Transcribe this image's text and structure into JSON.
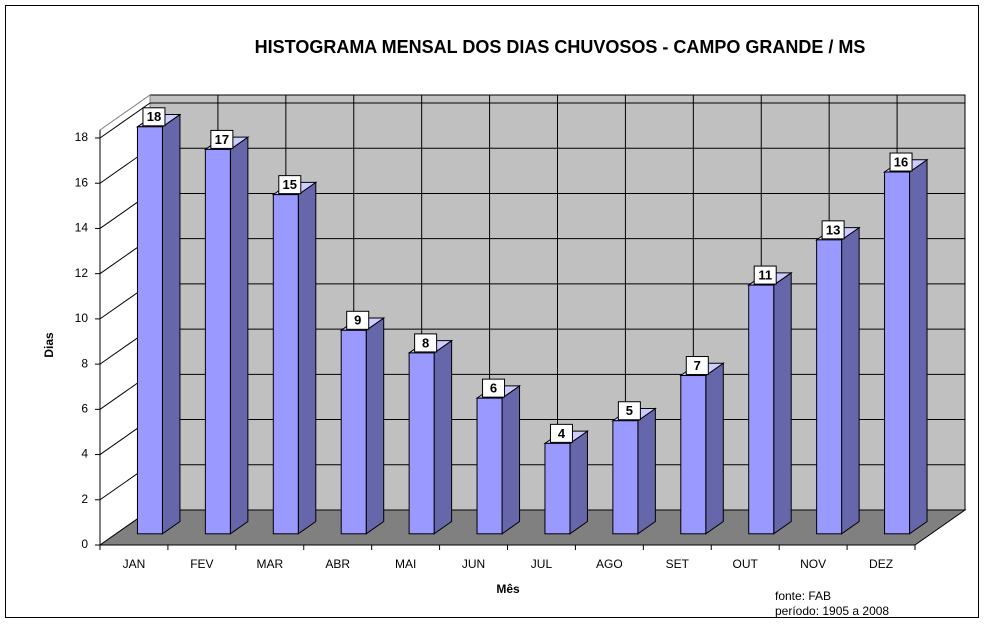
{
  "chart_data": {
    "type": "bar3d",
    "title": "HISTOGRAMA MENSAL DOS DIAS CHUVOSOS - CAMPO GRANDE / MS",
    "y_label": "Dias",
    "x_label": "Mês",
    "annotations": [
      "fonte:  FAB",
      "período: 1905 a 2008"
    ],
    "categories": [
      "JAN",
      "FEV",
      "MAR",
      "ABR",
      "MAI",
      "JUN",
      "JUL",
      "AGO",
      "SET",
      "OUT",
      "NOV",
      "DEZ"
    ],
    "values": [
      18,
      17,
      15,
      9,
      8,
      6,
      4,
      5,
      7,
      11,
      13,
      16
    ],
    "color": "#9999ff",
    "ylim": [
      0,
      18
    ],
    "yticks": [
      0,
      2,
      4,
      6,
      8,
      10,
      12,
      14,
      16,
      18
    ],
    "grid": true,
    "data_labels": true
  }
}
